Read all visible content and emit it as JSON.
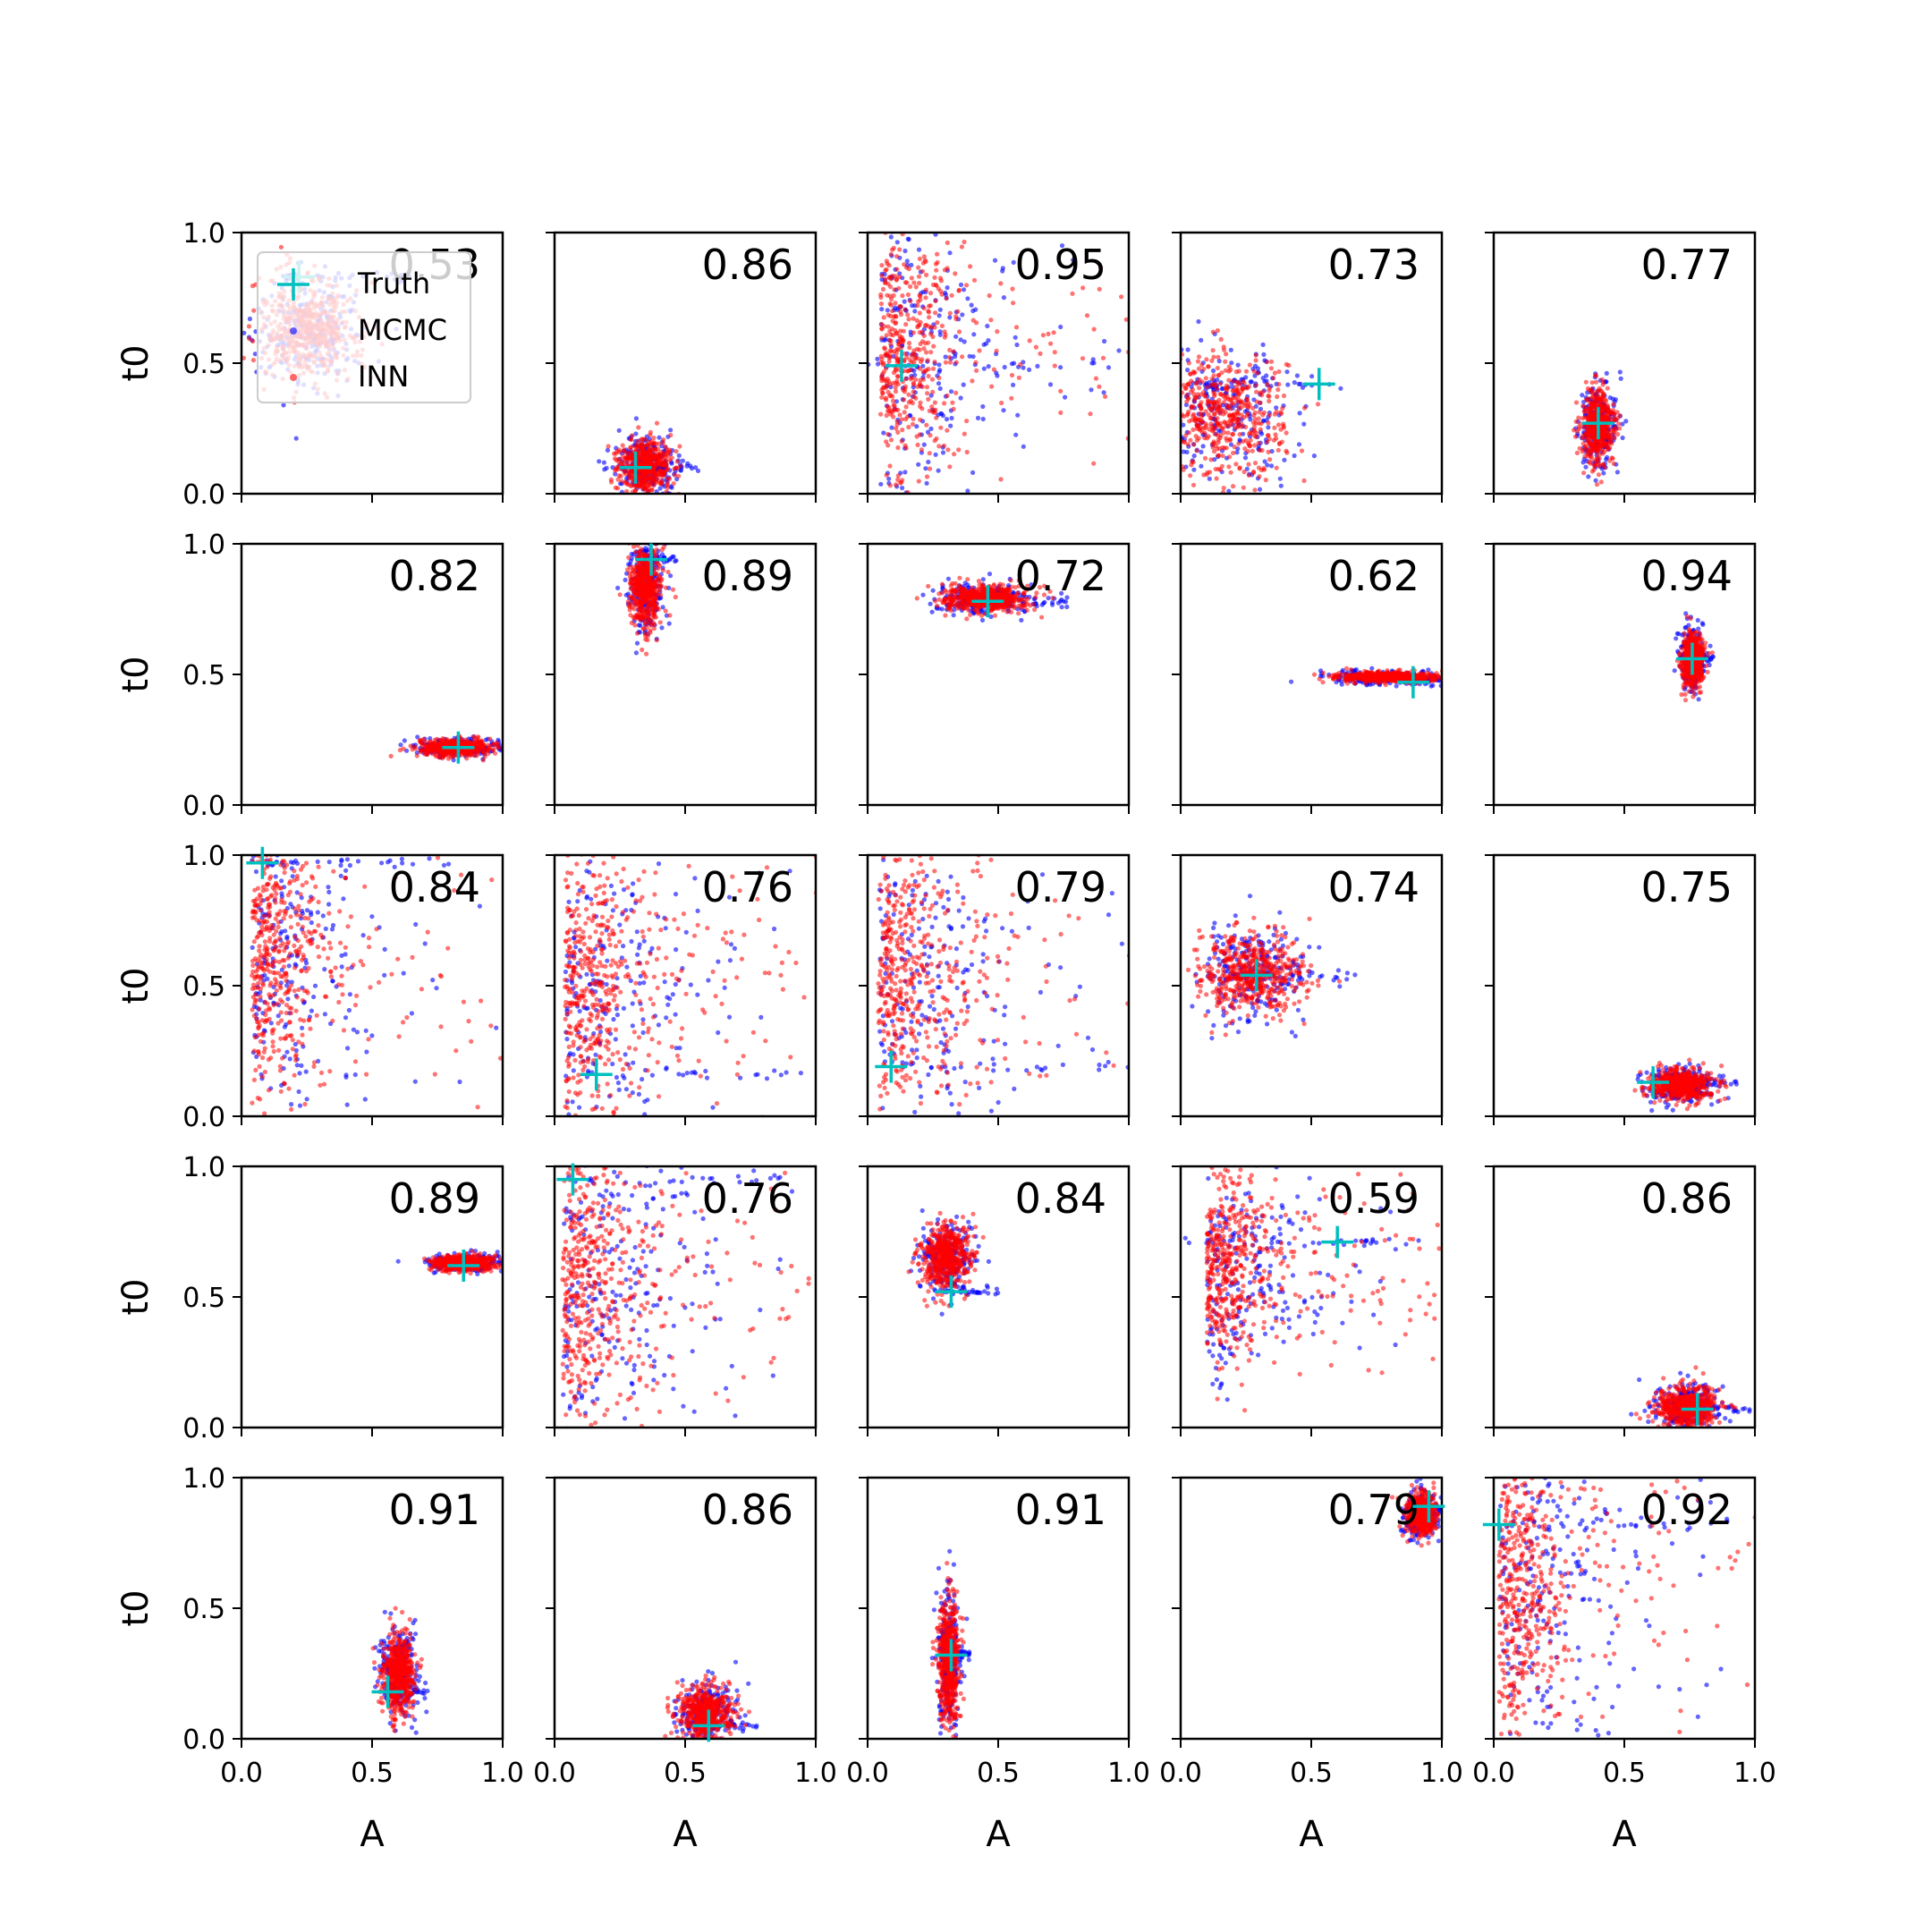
{
  "chart_data": {
    "type": "scatter",
    "grid_rows": 5,
    "grid_cols": 5,
    "xlabel": "A",
    "ylabel": "t0",
    "xlim": [
      0,
      1
    ],
    "ylim": [
      0,
      1
    ],
    "xticks": [
      "0.0",
      "0.5",
      "1.0"
    ],
    "yticks": [
      "0.0",
      "0.5",
      "1.0"
    ],
    "grid": false,
    "colors": {
      "truth": "#00bfbf",
      "mcmc": "#0000ff",
      "inn": "#ff0000"
    },
    "legend": {
      "placement": "top-left of first panel",
      "entries": [
        {
          "label": "Truth",
          "marker": "plus",
          "color": "#00bfbf"
        },
        {
          "label": "MCMC",
          "marker": "dot",
          "color": "#0000ff"
        },
        {
          "label": "INN",
          "marker": "dot",
          "color": "#ff0000"
        }
      ]
    },
    "panels": [
      {
        "score": "0.53",
        "truth": [
          0.22,
          0.83
        ]
      },
      {
        "score": "0.86",
        "truth": [
          0.31,
          0.1
        ]
      },
      {
        "score": "0.95",
        "truth": [
          0.13,
          0.49
        ]
      },
      {
        "score": "0.73",
        "truth": [
          0.53,
          0.42
        ]
      },
      {
        "score": "0.77",
        "truth": [
          0.4,
          0.27
        ]
      },
      {
        "score": "0.82",
        "truth": [
          0.83,
          0.22
        ]
      },
      {
        "score": "0.89",
        "truth": [
          0.37,
          0.94
        ]
      },
      {
        "score": "0.72",
        "truth": [
          0.46,
          0.78
        ]
      },
      {
        "score": "0.62",
        "truth": [
          0.89,
          0.47
        ]
      },
      {
        "score": "0.94",
        "truth": [
          0.76,
          0.56
        ]
      },
      {
        "score": "0.84",
        "truth": [
          0.08,
          0.97
        ]
      },
      {
        "score": "0.76",
        "truth": [
          0.16,
          0.16
        ]
      },
      {
        "score": "0.79",
        "truth": [
          0.09,
          0.19
        ]
      },
      {
        "score": "0.74",
        "truth": [
          0.29,
          0.54
        ]
      },
      {
        "score": "0.75",
        "truth": [
          0.61,
          0.13
        ]
      },
      {
        "score": "0.89",
        "truth": [
          0.85,
          0.62
        ]
      },
      {
        "score": "0.76",
        "truth": [
          0.07,
          0.95
        ]
      },
      {
        "score": "0.84",
        "truth": [
          0.32,
          0.52
        ]
      },
      {
        "score": "0.59",
        "truth": [
          0.6,
          0.71
        ]
      },
      {
        "score": "0.86",
        "truth": [
          0.78,
          0.07
        ]
      },
      {
        "score": "0.91",
        "truth": [
          0.56,
          0.18
        ]
      },
      {
        "score": "0.86",
        "truth": [
          0.59,
          0.05
        ]
      },
      {
        "score": "0.91",
        "truth": [
          0.32,
          0.32
        ]
      },
      {
        "score": "0.79",
        "truth": [
          0.95,
          0.89
        ]
      },
      {
        "score": "0.92",
        "truth": [
          0.02,
          0.82
        ]
      }
    ]
  }
}
